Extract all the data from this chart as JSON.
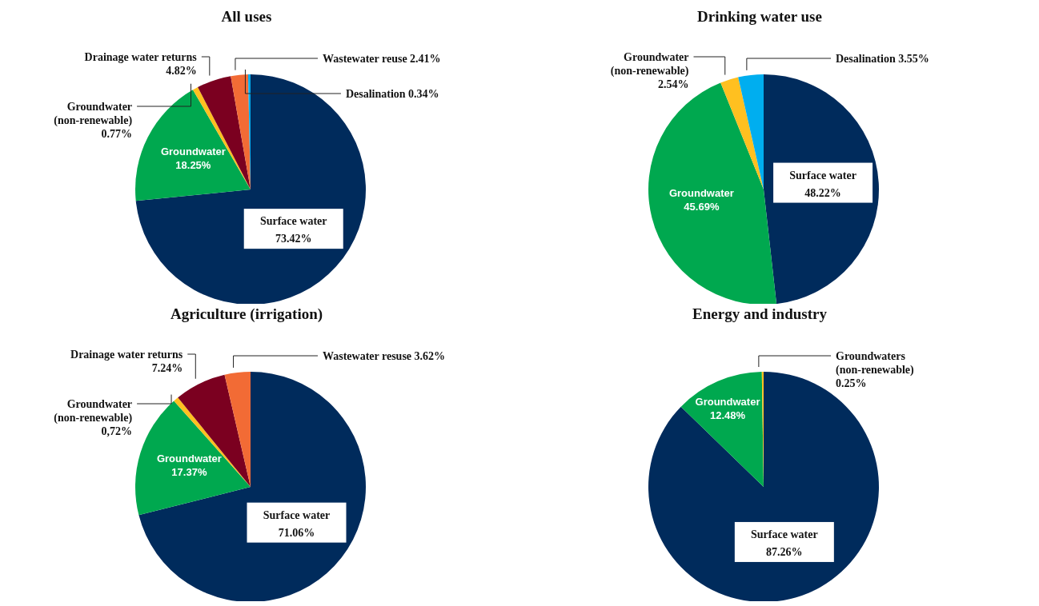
{
  "chart_data": [
    {
      "type": "pie",
      "title": "All uses",
      "categories": [
        "Surface water",
        "Groundwater",
        "Groundwater (non-renewable)",
        "Drainage water returns",
        "Wastewater reuse",
        "Desalination"
      ],
      "values": [
        73.42,
        18.25,
        0.77,
        4.82,
        2.41,
        0.34
      ],
      "colors": [
        "#002b5c",
        "#00a84f",
        "#ffc020",
        "#7b0020",
        "#f26b35",
        "#00aeef"
      ],
      "value_labels": [
        "73.42%",
        "18.25%",
        "0.77%",
        "4.82%",
        "2.41%",
        "0.34%"
      ]
    },
    {
      "type": "pie",
      "title": "Drinking water use",
      "categories": [
        "Surface water",
        "Groundwater",
        "Groundwater (non-renewable)",
        "Desalination"
      ],
      "values": [
        48.22,
        45.69,
        2.54,
        3.55
      ],
      "colors": [
        "#002b5c",
        "#00a84f",
        "#ffc020",
        "#00aeef"
      ],
      "value_labels": [
        "48.22%",
        "45.69%",
        "2.54%",
        "3.55%"
      ]
    },
    {
      "type": "pie",
      "title": "Agriculture (irrigation)",
      "categories": [
        "Surface water",
        "Groundwater",
        "Groundwater (non-renewable)",
        "Drainage water returns",
        "Wastewater resuse"
      ],
      "values": [
        71.06,
        17.37,
        0.72,
        7.24,
        3.62
      ],
      "colors": [
        "#002b5c",
        "#00a84f",
        "#ffc020",
        "#7b0020",
        "#f26b35"
      ],
      "value_labels": [
        "71.06%",
        "17.37%",
        "0,72%",
        "7.24%",
        "3.62%"
      ]
    },
    {
      "type": "pie",
      "title": "Energy and industry",
      "categories": [
        "Surface water",
        "Groundwater",
        "Groundwaters (non-renewable)"
      ],
      "values": [
        87.26,
        12.48,
        0.25
      ],
      "colors": [
        "#002b5c",
        "#00a84f",
        "#ffc020"
      ],
      "value_labels": [
        "87.26%",
        "12.48%",
        "0.25%"
      ]
    }
  ]
}
